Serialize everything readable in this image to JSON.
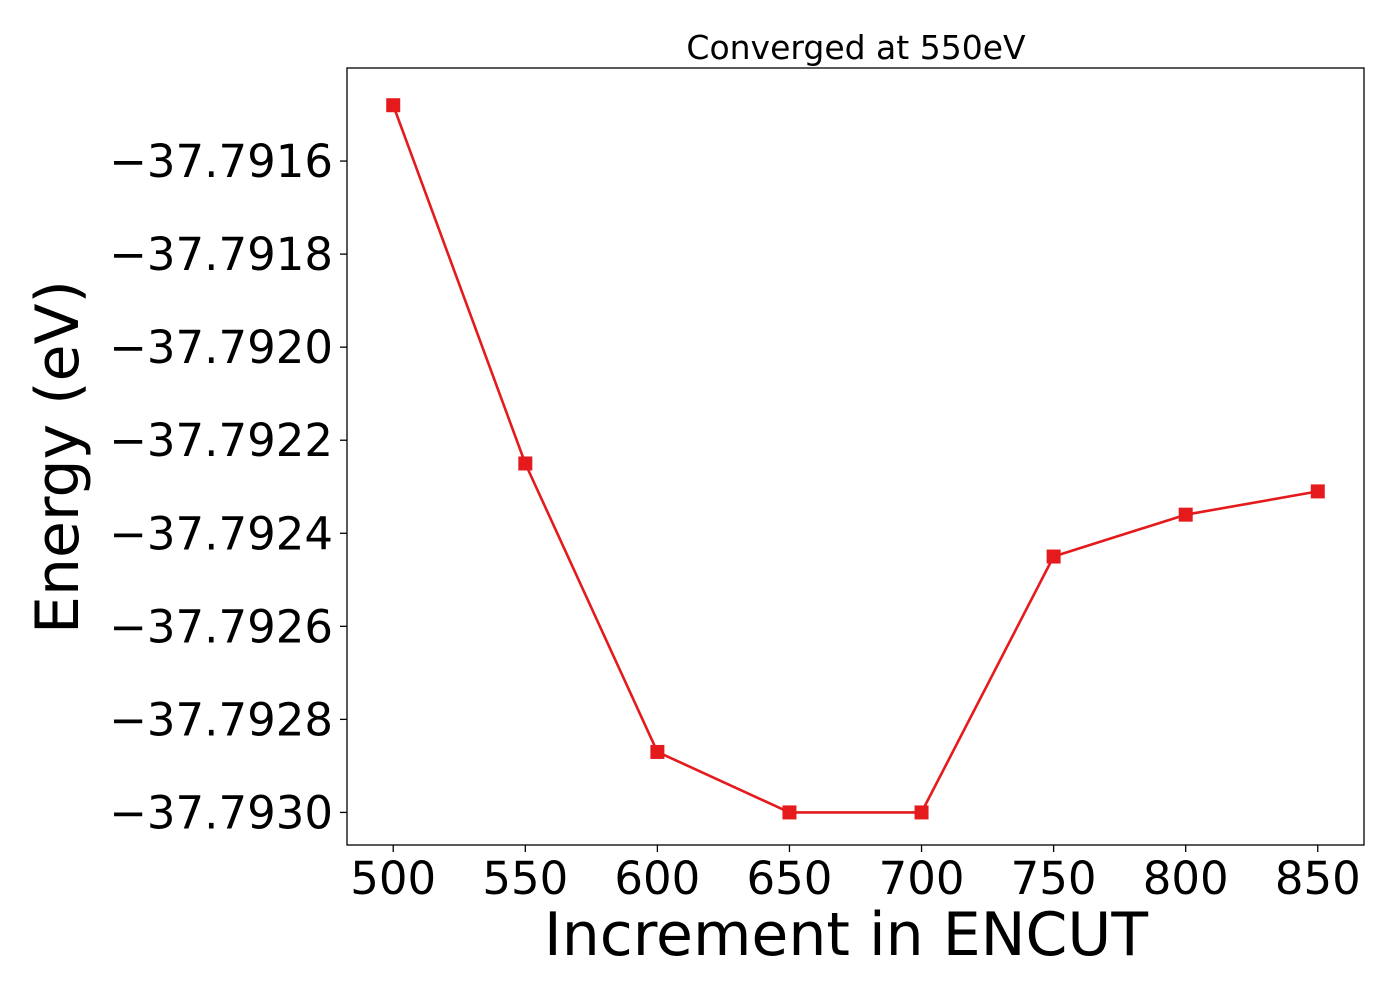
{
  "chart_data": {
    "type": "line",
    "title": "Converged at 550eV",
    "xlabel": "Increment in ENCUT",
    "ylabel": "Energy (eV)",
    "x": [
      500,
      550,
      600,
      650,
      700,
      750,
      800,
      850
    ],
    "series": [
      {
        "values": [
          -37.79148,
          -37.79225,
          -37.79287,
          -37.793,
          -37.793,
          -37.79245,
          -37.79236,
          -37.79231
        ],
        "color": "#e41a1c",
        "marker": "square"
      }
    ],
    "xticks": [
      500,
      550,
      600,
      650,
      700,
      750,
      800,
      850
    ],
    "xtick_labels": [
      "500",
      "550",
      "600",
      "650",
      "700",
      "750",
      "800",
      "850"
    ],
    "yticks": [
      -37.7916,
      -37.7918,
      -37.792,
      -37.7922,
      -37.7924,
      -37.7926,
      -37.7928,
      -37.793
    ],
    "ytick_labels": [
      "−37.7916",
      "−37.7918",
      "−37.7920",
      "−37.7922",
      "−37.7924",
      "−37.7926",
      "−37.7928",
      "−37.7930"
    ],
    "xlim": [
      482.5,
      867.5
    ],
    "ylim": [
      -37.79307,
      -37.7914
    ],
    "grid": false,
    "legend": "none"
  }
}
